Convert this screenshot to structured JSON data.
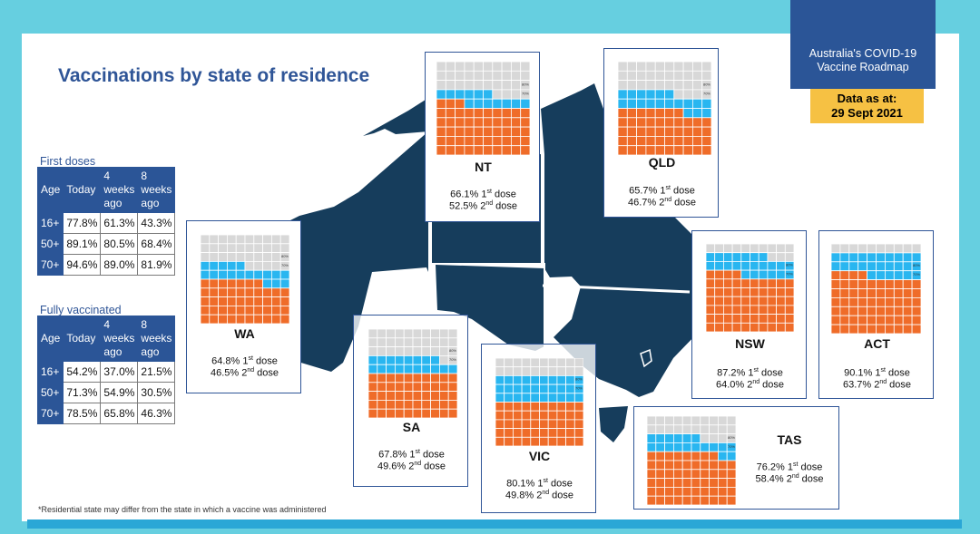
{
  "slide": {
    "title": "Vaccinations by state of residence",
    "footnote": "*Residential state may differ from the state in which a vaccine was administered"
  },
  "badge": {
    "line1": "Australia's COVID-19",
    "line2": "Vaccine Roadmap"
  },
  "data_as_at": {
    "label": "Data as at:",
    "date": "29 Sept 2021"
  },
  "colors": {
    "first_dose": "#29b6f0",
    "second_dose": "#ef6c29",
    "unvaccinated": "#d8d8d8",
    "map": "#163d5c",
    "frame": "#2f5597"
  },
  "first_doses": {
    "title": "First doses",
    "headers": [
      "Age",
      "Today",
      "4\nweeks\nago",
      "8\nweeks\nago"
    ],
    "rows": [
      {
        "age": "16+",
        "today": "77.8%",
        "w4": "61.3%",
        "w8": "43.3%"
      },
      {
        "age": "50+",
        "today": "89.1%",
        "w4": "80.5%",
        "w8": "68.4%"
      },
      {
        "age": "70+",
        "today": "94.6%",
        "w4": "89.0%",
        "w8": "81.9%"
      }
    ]
  },
  "fully_vaccinated": {
    "title": "Fully vaccinated",
    "headers": [
      "Age",
      "Today",
      "4\nweeks\nago",
      "8\nweeks\nago"
    ],
    "rows": [
      {
        "age": "16+",
        "today": "54.2%",
        "w4": "37.0%",
        "w8": "21.5%"
      },
      {
        "age": "50+",
        "today": "71.3%",
        "w4": "54.9%",
        "w8": "30.5%"
      },
      {
        "age": "70+",
        "today": "78.5%",
        "w4": "65.8%",
        "w8": "46.3%"
      }
    ]
  },
  "chart_data": {
    "type": "waffle",
    "grid": "10x10",
    "targets": [
      "80%",
      "70%"
    ],
    "series": [
      "1st dose",
      "2nd dose"
    ],
    "states": [
      {
        "name": "NT",
        "first": 66.1,
        "second": 52.5,
        "first_text": "66.1% 1",
        "second_text": "52.5% 2"
      },
      {
        "name": "QLD",
        "first": 65.7,
        "second": 46.7,
        "first_text": "65.7% 1",
        "second_text": "46.7% 2"
      },
      {
        "name": "WA",
        "first": 64.8,
        "second": 46.5,
        "first_text": "64.8% 1",
        "second_text": "46.5% 2"
      },
      {
        "name": "SA",
        "first": 67.8,
        "second": 49.6,
        "first_text": "67.8% 1",
        "second_text": "49.6% 2"
      },
      {
        "name": "VIC",
        "first": 80.1,
        "second": 49.8,
        "first_text": "80.1% 1",
        "second_text": "49.8% 2"
      },
      {
        "name": "NSW",
        "first": 87.2,
        "second": 64.0,
        "first_text": "87.2% 1",
        "second_text": "64.0% 2"
      },
      {
        "name": "ACT",
        "first": 90.1,
        "second": 63.7,
        "first_text": "90.1% 1",
        "second_text": "63.7% 2"
      },
      {
        "name": "TAS",
        "first": 76.2,
        "second": 58.4,
        "first_text": "76.2% 1",
        "second_text": "58.4% 2"
      }
    ],
    "ordinal": {
      "first": "st",
      "second": "nd",
      "word": " dose"
    }
  }
}
